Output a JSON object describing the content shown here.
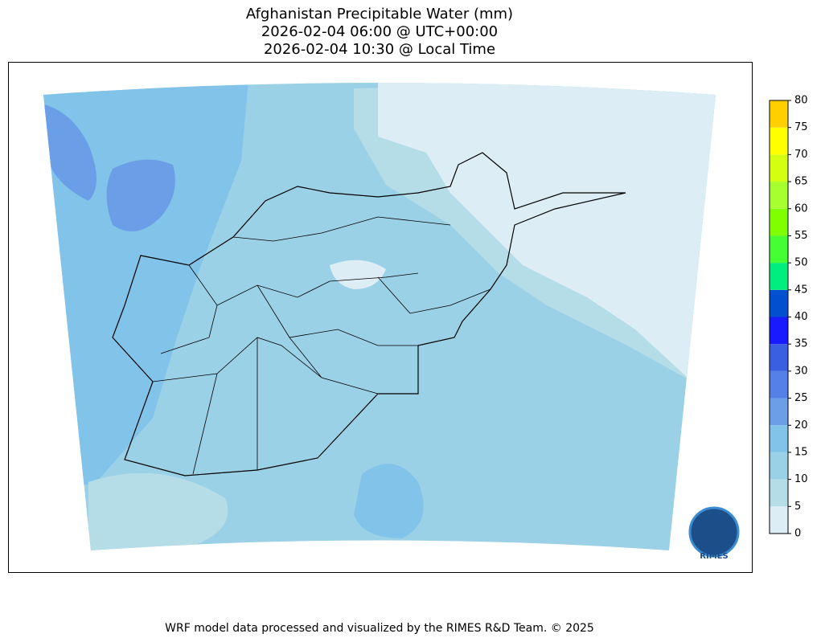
{
  "title": [
    "Afghanistan Precipitable Water (mm)",
    "2026-02-04 06:00 @ UTC+00:00",
    "2026-02-04 10:30 @ Local Time"
  ],
  "colorbar": {
    "ticks": [
      0,
      5,
      10,
      15,
      20,
      25,
      30,
      35,
      40,
      45,
      50,
      55,
      60,
      65,
      70,
      75,
      80
    ],
    "colors": [
      "#dcedf6",
      "#b5dde8",
      "#9bd1e6",
      "#82c3ea",
      "#6a9fe8",
      "#5580e6",
      "#3a5fe0",
      "#1a1aff",
      "#0050d0",
      "#00ee80",
      "#44ff33",
      "#80ff00",
      "#a8ff30",
      "#d4ff10",
      "#ffff00",
      "#ffd000"
    ]
  },
  "logo": {
    "text": "RIMES"
  },
  "footer": "WRF model data processed and visualized by the RIMES R&D Team. © 2025"
}
